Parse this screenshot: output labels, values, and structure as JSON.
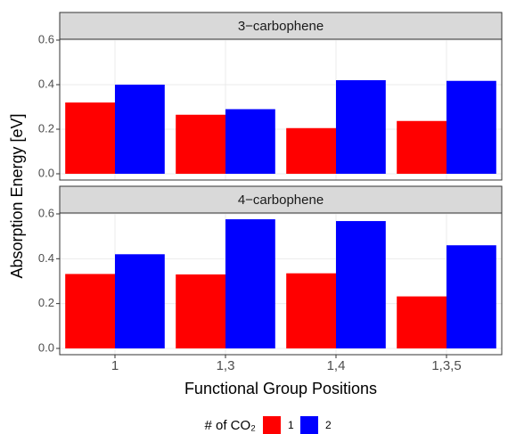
{
  "chart_data": {
    "type": "bar",
    "ylabel": "Absorption Energy [eV]",
    "xlabel": "Functional Group Positions",
    "legend_title": "# of CO₂",
    "categories": [
      "1",
      "1,3",
      "1,4",
      "1,3,5"
    ],
    "ylim": [
      -0.028,
      0.604
    ],
    "yticks": [
      {
        "value": 0,
        "label": "0.0"
      },
      0.2,
      0.4,
      0.6
    ],
    "grid": true,
    "panels": [
      {
        "title": "3−carbophene",
        "series": [
          {
            "name": "1",
            "color": "#ff0000",
            "values": [
              0.32,
              0.265,
              0.205,
              0.237
            ]
          },
          {
            "name": "2",
            "color": "#0000ff",
            "values": [
              0.4,
              0.29,
              0.42,
              0.417
            ]
          }
        ]
      },
      {
        "title": "4−carbophene",
        "series": [
          {
            "name": "1",
            "color": "#ff0000",
            "values": [
              0.332,
              0.33,
              0.335,
              0.232
            ]
          },
          {
            "name": "2",
            "color": "#0000ff",
            "values": [
              0.42,
              0.576,
              0.568,
              0.46
            ]
          }
        ]
      }
    ]
  }
}
